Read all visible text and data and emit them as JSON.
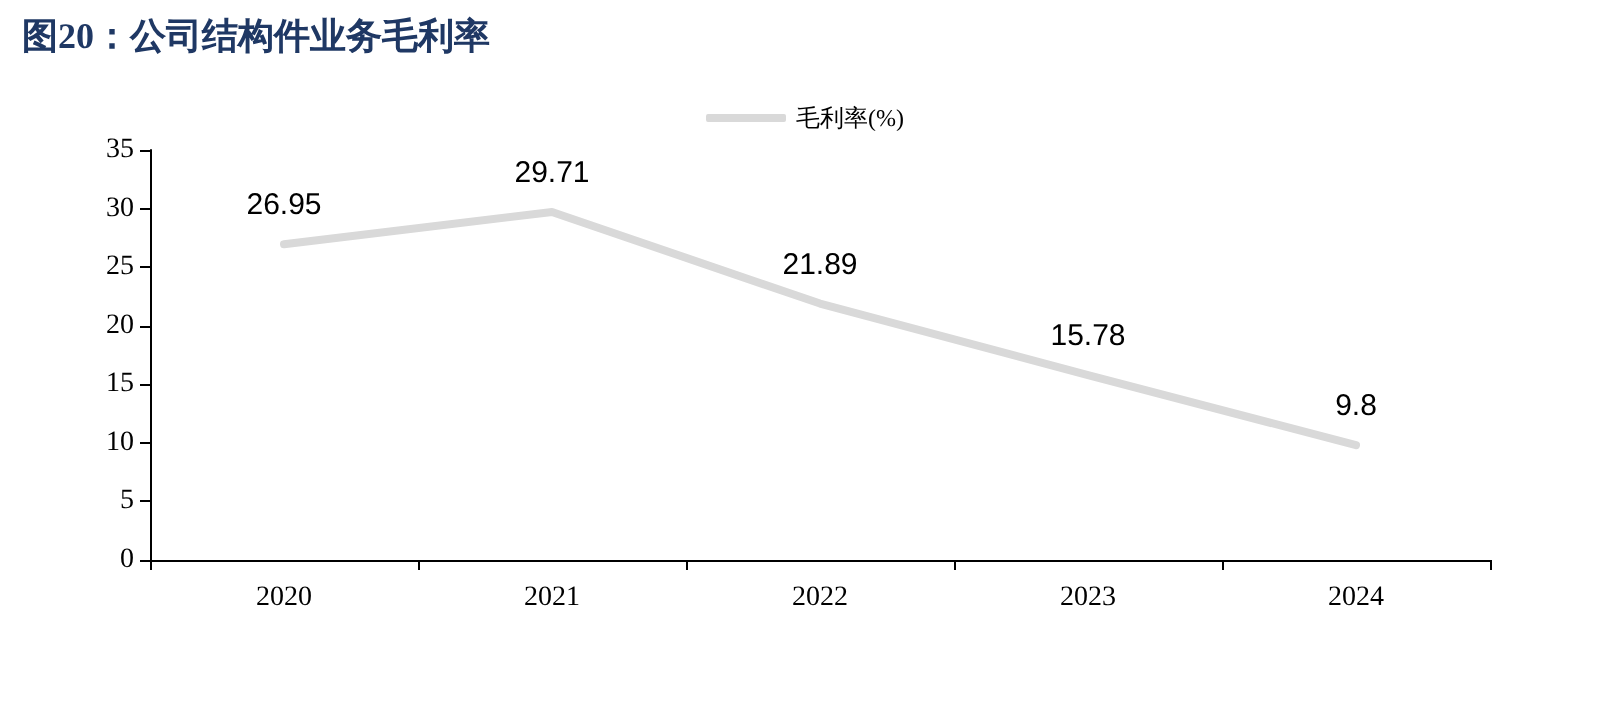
{
  "chart_data": {
    "type": "line",
    "title": "图20：公司结构件业务毛利率",
    "categories": [
      "2020",
      "2021",
      "2022",
      "2023",
      "2024"
    ],
    "series": [
      {
        "name": "毛利率(%)",
        "color": "#d9d9d9",
        "values": [
          26.95,
          29.71,
          21.89,
          15.78,
          9.8
        ]
      }
    ],
    "ylim": [
      0,
      35
    ],
    "yticks": [
      0,
      5,
      10,
      15,
      20,
      25,
      30,
      35
    ],
    "data_labels": true,
    "legend": "top",
    "grid": false,
    "marker": "none",
    "line_style": "solid"
  }
}
